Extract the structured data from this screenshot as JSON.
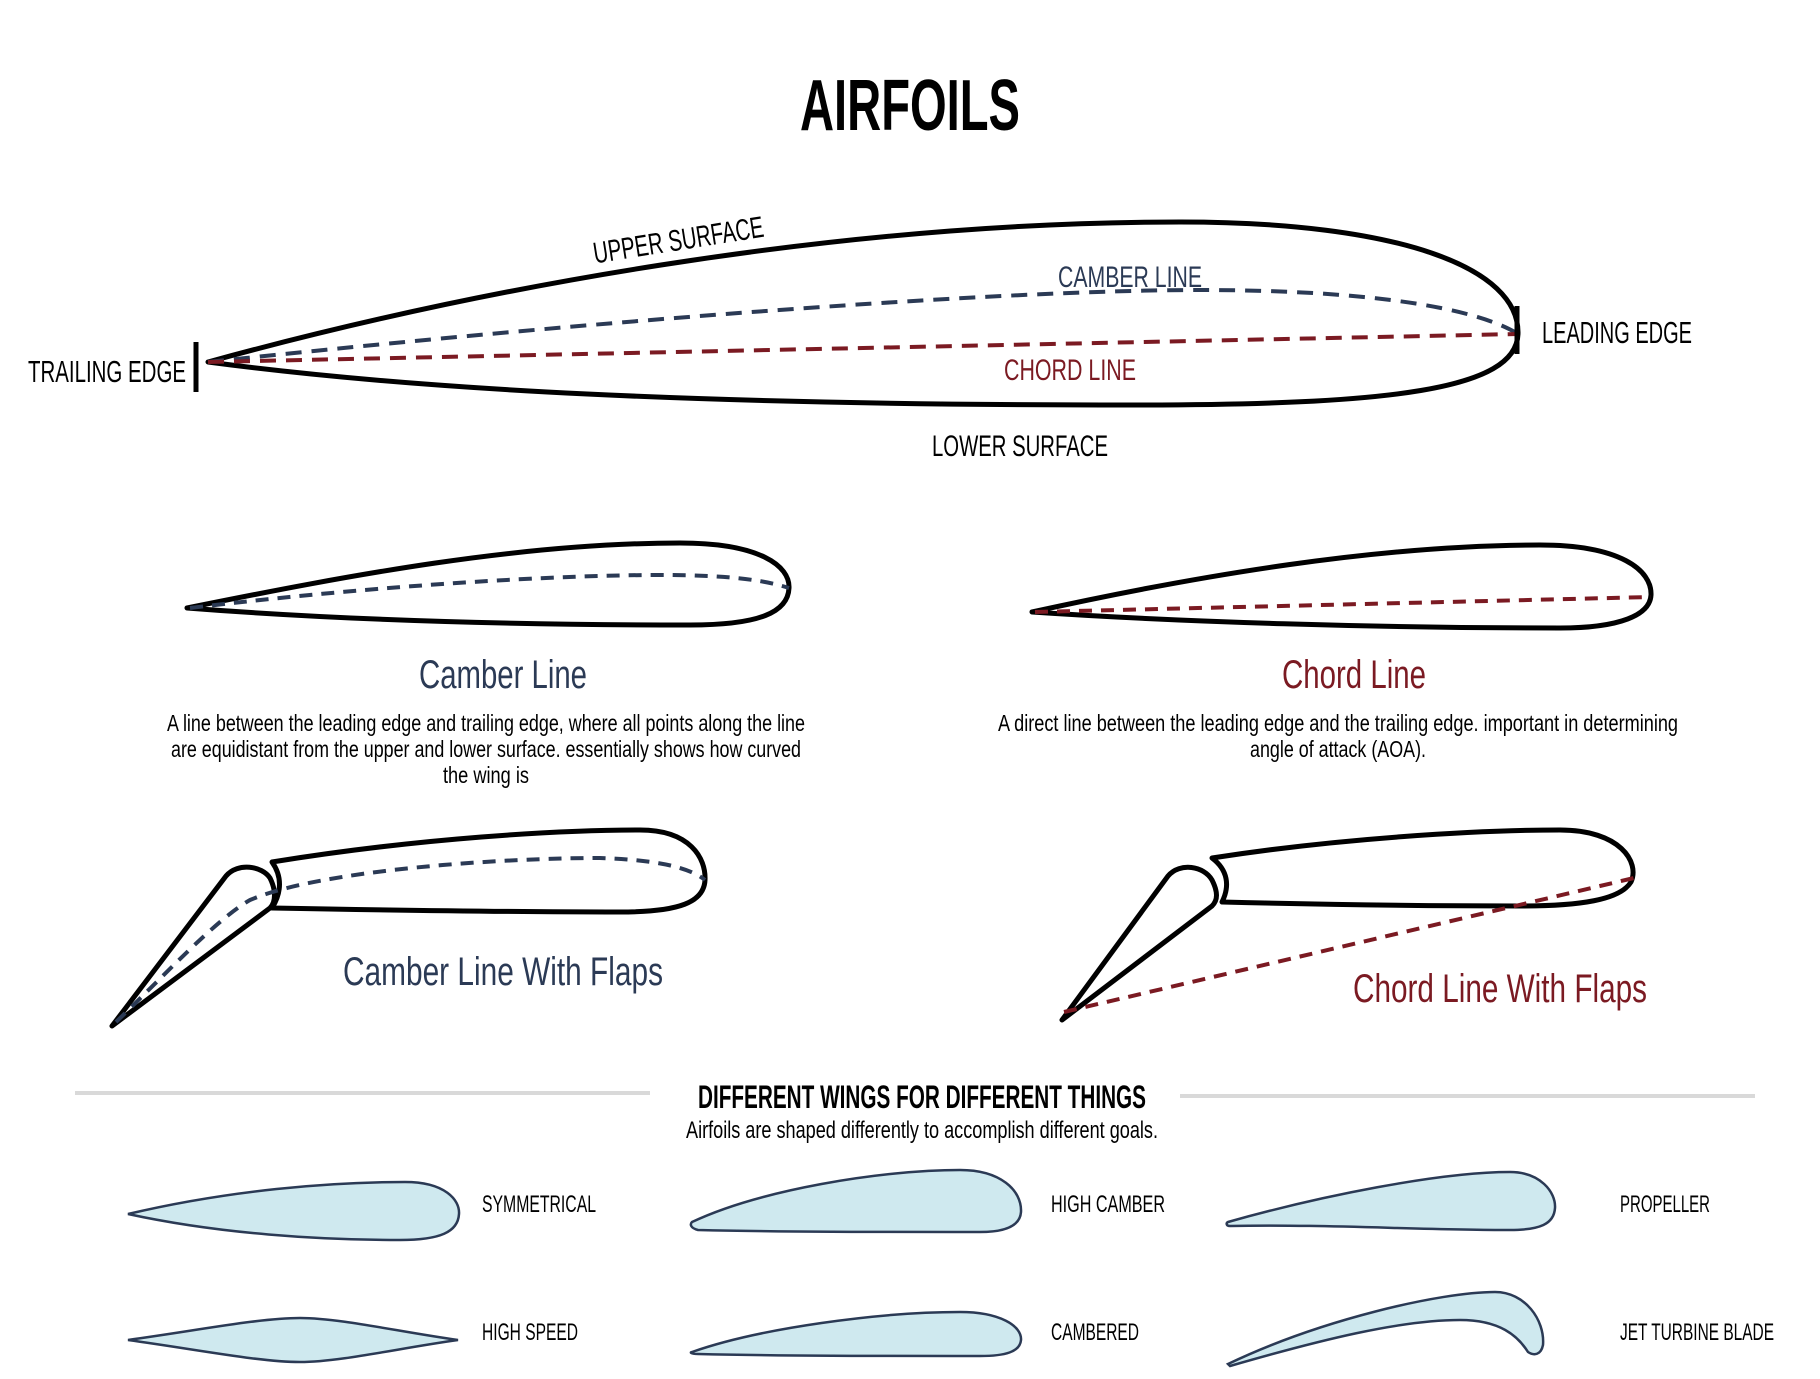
{
  "title": "AIRFOILS",
  "colors": {
    "ink": "#000000",
    "camber": "#2b3a55",
    "chord": "#7b1a22",
    "fill": "#cfe9ef",
    "fill_stroke": "#2b3a55",
    "divider": "#d9d9d9"
  },
  "main_diagram": {
    "upper_surface": "UPPER SURFACE",
    "camber_line": "CAMBER LINE",
    "chord_line": "CHORD LINE",
    "lower_surface": "LOWER SURFACE",
    "trailing_edge": "TRAILING EDGE",
    "leading_edge": "LEADING EDGE"
  },
  "camber_panel": {
    "title": "Camber Line",
    "desc_lines": [
      "A line between the leading edge and trailing edge, where all points along the line",
      "are equidistant from the upper and lower surface. essentially shows how curved",
      "the wing is"
    ]
  },
  "chord_panel": {
    "title": "Chord Line",
    "desc_lines": [
      "A direct line between the leading edge and the trailing edge. important in determining",
      "angle of attack (AOA)."
    ]
  },
  "flaps": {
    "camber_title": "Camber Line With Flaps",
    "chord_title": "Chord Line With Flaps"
  },
  "wings_section": {
    "heading": "DIFFERENT WINGS FOR DIFFERENT THINGS",
    "subheading": "Airfoils are shaped differently to accomplish different goals.",
    "types": [
      {
        "label": "SYMMETRICAL",
        "icon": "symmetrical-airfoil-icon"
      },
      {
        "label": "HIGH CAMBER",
        "icon": "high-camber-airfoil-icon"
      },
      {
        "label": "PROPELLER",
        "icon": "propeller-airfoil-icon"
      },
      {
        "label": "HIGH SPEED",
        "icon": "high-speed-airfoil-icon"
      },
      {
        "label": "CAMBERED",
        "icon": "cambered-airfoil-icon"
      },
      {
        "label": "JET TURBINE BLADE",
        "icon": "jet-turbine-blade-icon"
      }
    ]
  }
}
